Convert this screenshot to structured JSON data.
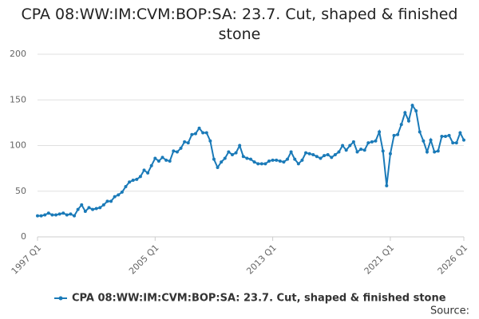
{
  "chart_data": {
    "type": "line",
    "title": "CPA 08:WW:IM:CVM:BOP:SA: 23.7. Cut, shaped & finished stone",
    "source_label": "Source:",
    "categories": [
      "1997 Q1",
      null,
      null,
      null,
      null,
      null,
      null,
      null,
      null,
      null,
      null,
      null,
      null,
      null,
      null,
      null,
      null,
      null,
      null,
      null,
      null,
      null,
      null,
      null,
      null,
      null,
      null,
      null,
      null,
      null,
      null,
      null,
      "2005 Q1",
      null,
      null,
      null,
      null,
      null,
      null,
      null,
      null,
      null,
      null,
      null,
      null,
      null,
      null,
      null,
      null,
      null,
      null,
      null,
      null,
      null,
      null,
      null,
      null,
      null,
      null,
      null,
      null,
      null,
      null,
      null,
      "2013 Q1",
      null,
      null,
      null,
      null,
      null,
      null,
      null,
      null,
      null,
      null,
      null,
      null,
      null,
      null,
      null,
      null,
      null,
      null,
      null,
      null,
      null,
      null,
      null,
      null,
      null,
      null,
      null,
      null,
      null,
      null,
      null,
      "2021 Q1",
      null,
      null,
      null,
      null,
      null,
      null,
      null,
      null,
      null,
      null,
      null,
      null,
      null,
      null,
      null,
      null,
      null,
      null,
      null,
      "2026 Q1"
    ],
    "series": [
      {
        "name": "CPA 08:WW:IM:CVM:BOP:SA: 23.7. Cut, shaped & finished stone",
        "color": "#1a7ab8",
        "values": [
          23,
          23,
          24,
          26,
          24,
          24,
          25,
          26,
          24,
          25,
          23,
          30,
          35,
          28,
          32,
          30,
          31,
          32,
          35,
          39,
          39,
          44,
          46,
          49,
          55,
          60,
          62,
          63,
          66,
          73,
          70,
          78,
          86,
          83,
          87,
          84,
          83,
          94,
          93,
          97,
          104,
          103,
          112,
          113,
          119,
          114,
          114,
          105,
          85,
          76,
          82,
          86,
          93,
          90,
          92,
          100,
          88,
          86,
          85,
          82,
          80,
          80,
          80,
          83,
          84,
          84,
          83,
          82,
          85,
          93,
          85,
          80,
          84,
          92,
          91,
          90,
          88,
          86,
          89,
          90,
          87,
          90,
          93,
          100,
          95,
          100,
          104,
          93,
          96,
          95,
          103,
          104,
          105,
          115,
          94,
          56,
          91,
          111,
          112,
          123,
          136,
          127,
          144,
          138,
          115,
          105,
          93,
          106,
          93,
          94,
          110,
          110,
          111,
          103,
          103,
          114,
          106
        ]
      }
    ],
    "ylim": [
      0,
      200
    ],
    "yticks": [
      0,
      50,
      100,
      150,
      200
    ],
    "grid": true
  }
}
